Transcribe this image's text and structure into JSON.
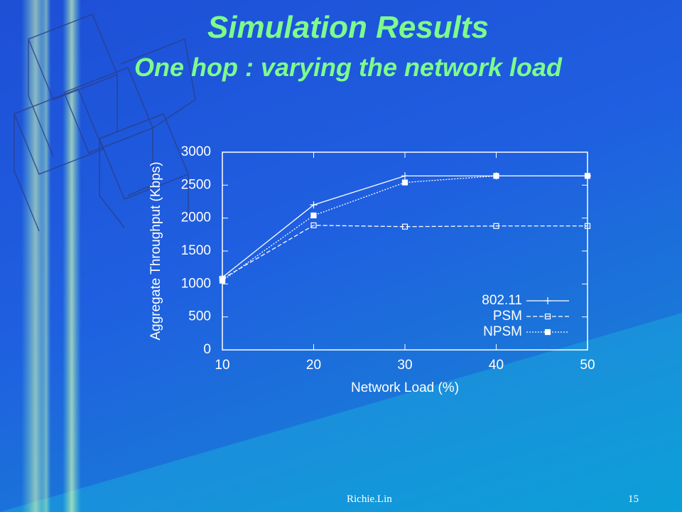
{
  "slide": {
    "title": "Simulation Results",
    "subtitle": "One hop : varying the network load",
    "footer": "Richie.Lin",
    "page_number": "15"
  },
  "chart_data": {
    "type": "line",
    "x_label": "Network Load (%)",
    "y_label": "Aggregate Throughput (Kbps)",
    "x": [
      10,
      20,
      30,
      40,
      50
    ],
    "series": [
      {
        "name": "802.11",
        "color": "#ffffff",
        "dash": "none",
        "marker": "plus",
        "values": [
          1100,
          2200,
          2640,
          2640,
          2640
        ]
      },
      {
        "name": "PSM",
        "color": "#ffffff",
        "dash": "6,3",
        "marker": "open-square",
        "values": [
          1080,
          1890,
          1870,
          1880,
          1880
        ]
      },
      {
        "name": "NPSM",
        "color": "#ffffff",
        "dash": "2,2",
        "marker": "filled-square",
        "values": [
          1050,
          2040,
          2540,
          2640,
          2640
        ]
      }
    ],
    "xlim": [
      10,
      50
    ],
    "xticks": [
      10,
      20,
      30,
      40,
      50
    ],
    "ylim": [
      0,
      3000
    ],
    "yticks": [
      0,
      500,
      1000,
      1500,
      2000,
      2500,
      3000
    ],
    "legend": "lower right",
    "grid": false
  }
}
